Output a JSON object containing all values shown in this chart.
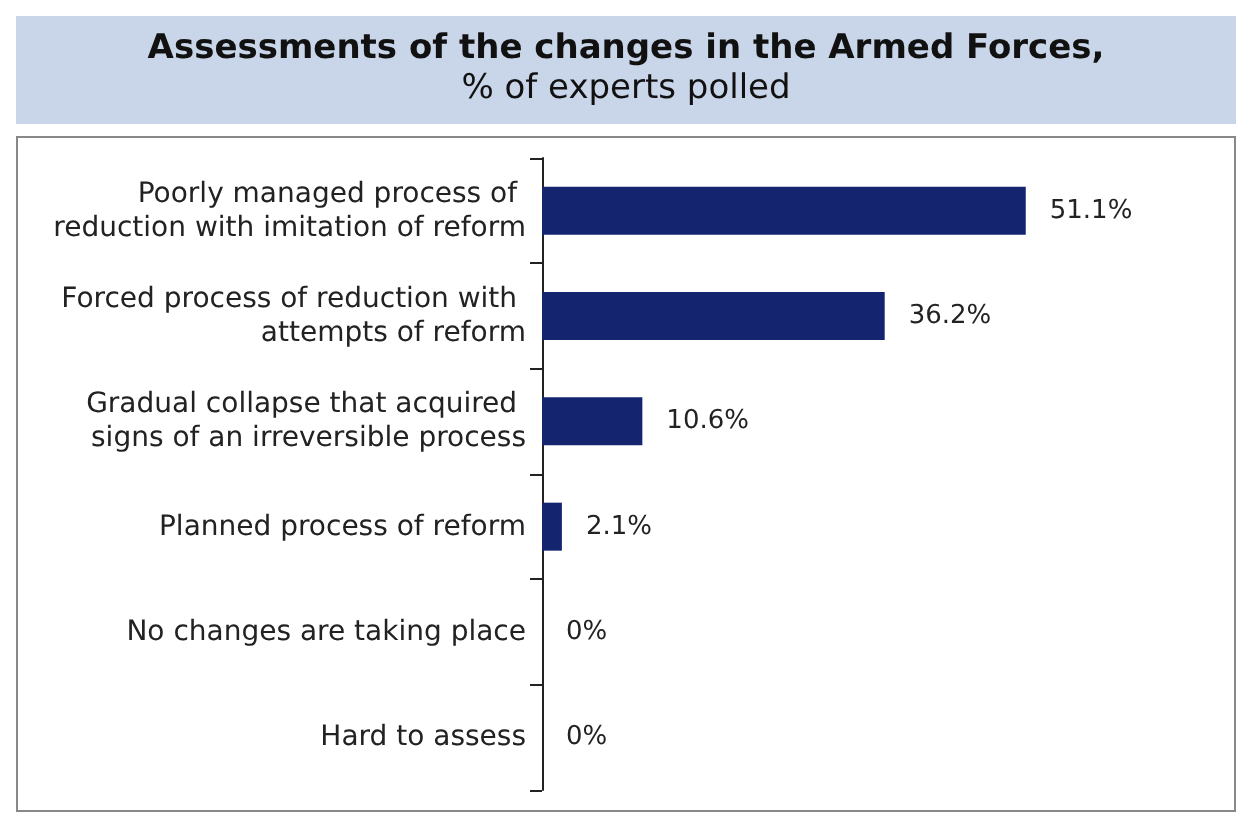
{
  "chart_data": {
    "type": "bar",
    "orientation": "horizontal",
    "title": "Assessments of the changes in the Armed Forces,",
    "subtitle": "% of experts polled",
    "categories": [
      "Poorly managed process of reduction with imitation of reform",
      "Forced process of reduction with attempts of reform",
      "Gradual collapse that acquired signs of an irreversible process",
      "Planned process of reform",
      "No changes are taking place",
      "Hard to assess"
    ],
    "values": [
      51.1,
      36.2,
      10.6,
      2.1,
      0,
      0
    ],
    "value_labels": [
      "51.1%",
      "36.2%",
      "10.6%",
      "2.1%",
      "0%",
      "0%"
    ],
    "color": "#14246e"
  }
}
